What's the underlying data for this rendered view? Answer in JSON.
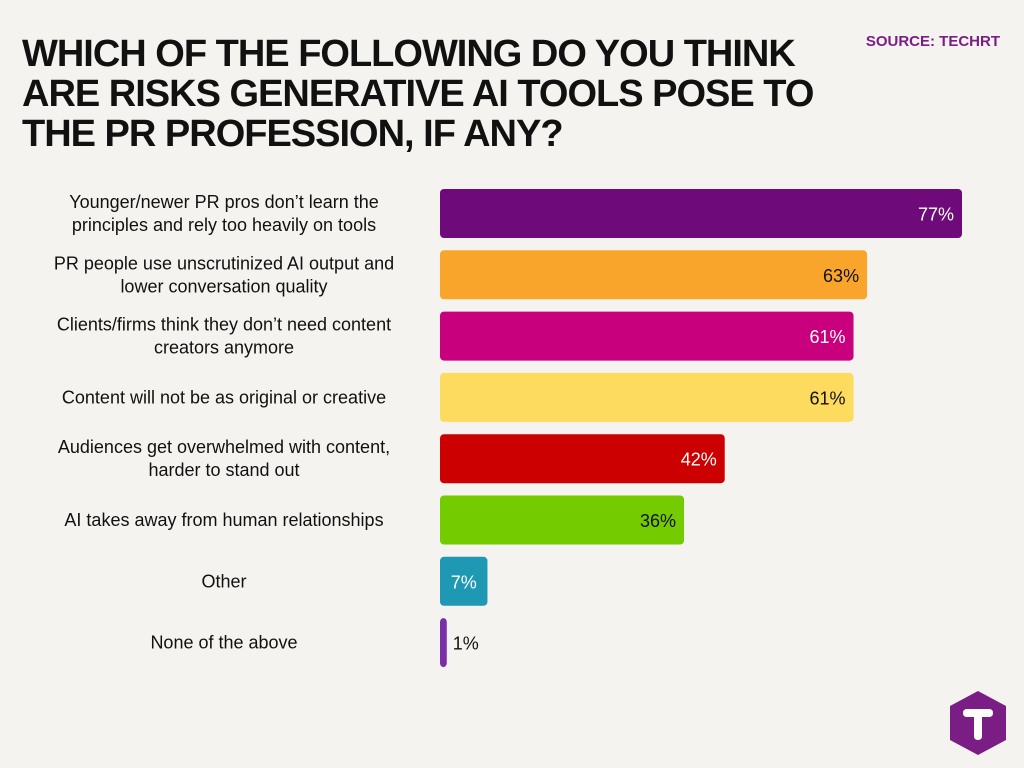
{
  "header": {
    "title": "WHICH OF THE FOLLOWING DO YOU THINK ARE RISKS GENERATIVE AI TOOLS POSE TO THE PR PROFESSION, IF ANY?",
    "source": "SOURCE: TECHRT"
  },
  "logo": {
    "icon": "techrt-logo-icon",
    "color": "#7a1e86"
  },
  "chart_data": {
    "type": "bar",
    "orientation": "horizontal",
    "categories": [
      [
        "Younger/newer PR pros don’t learn the",
        "principles and rely too heavily on tools"
      ],
      [
        "PR people use unscrutinized AI output and",
        "lower conversation quality"
      ],
      [
        "Clients/firms think they don’t need content",
        "creators anymore"
      ],
      [
        "Content will not be as original or creative"
      ],
      [
        "Audiences get overwhelmed with content,",
        "harder to stand out"
      ],
      [
        "AI takes away from human relationships"
      ],
      [
        "Other"
      ],
      [
        "None of the above"
      ]
    ],
    "values": [
      77,
      63,
      61,
      61,
      42,
      36,
      7,
      1
    ],
    "value_labels": [
      "77%",
      "63%",
      "61%",
      "61%",
      "42%",
      "36%",
      "7%",
      "1%"
    ],
    "colors": [
      "#6e0a7a",
      "#f9a52b",
      "#c8007d",
      "#fddb5f",
      "#cc0000",
      "#74cb00",
      "#1e98b3",
      "#7a2ea8"
    ],
    "label_colors": [
      "#ffffff",
      "#111111",
      "#ffffff",
      "#111111",
      "#ffffff",
      "#111111",
      "#ffffff",
      "#111111"
    ],
    "xlim": [
      0,
      77
    ],
    "grid": false,
    "legend": "none"
  }
}
